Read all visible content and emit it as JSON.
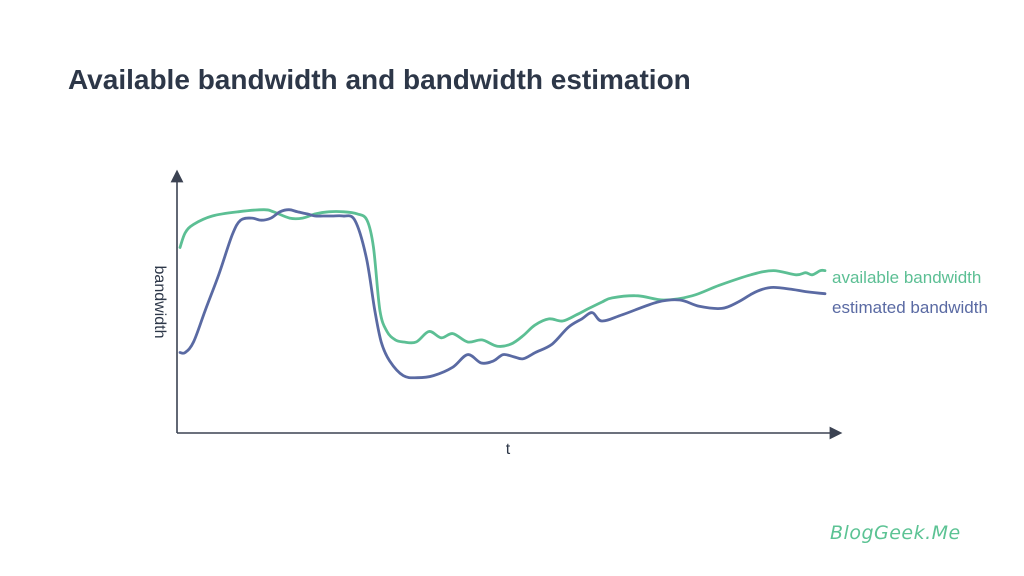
{
  "title": "Available bandwidth and bandwidth estimation",
  "logo": "BlogGeek.Me",
  "colors": {
    "available": "#5cbf94",
    "estimated": "#5a6aa3",
    "axis": "#3b4252",
    "title": "#2d3748"
  },
  "chart_data": {
    "type": "line",
    "xlabel": "t",
    "ylabel": "bandwidth",
    "xlim": [
      0,
      100
    ],
    "ylim": [
      0,
      100
    ],
    "grid": false,
    "legend": "right, inline at line ends",
    "series": [
      {
        "name": "available bandwidth",
        "x": [
          0,
          0.8,
          2.1,
          5,
          9,
          13,
          14.5,
          17,
          19,
          21,
          23,
          25.4,
          27.5,
          29,
          30,
          31,
          32.1,
          33.4,
          34.7,
          36.6,
          38.6,
          40.5,
          42.3,
          44.6,
          46.8,
          49.2,
          51.3,
          53.2,
          55,
          57.2,
          59.3,
          61.5,
          63.4,
          65.4,
          67,
          71,
          75,
          79.4,
          83.6,
          88.5,
          92,
          95.5,
          97,
          98,
          99.3,
          100
        ],
        "y": [
          75,
          82,
          86,
          90,
          92,
          93,
          92,
          89,
          89,
          91,
          92,
          92,
          91,
          88,
          75,
          45,
          35,
          31,
          30,
          30,
          35,
          32,
          34,
          30,
          31,
          28,
          29,
          33,
          38,
          41,
          40,
          43,
          46,
          49,
          51,
          52,
          50,
          52,
          57,
          62,
          64,
          62,
          63,
          62,
          64,
          64
        ]
      },
      {
        "name": "estimated bandwidth",
        "x": [
          0,
          0.8,
          2.1,
          3.9,
          6,
          8.1,
          9.4,
          11.1,
          12.6,
          14.1,
          15.5,
          16.9,
          18.2,
          19.7,
          21,
          22.2,
          23.6,
          25.3,
          27.1,
          28.9,
          30.2,
          31.2,
          32.5,
          34.6,
          36.8,
          39.3,
          42.3,
          44.6,
          46.7,
          48.6,
          50.1,
          51.7,
          53.2,
          55.1,
          57.7,
          60.2,
          62.3,
          63.9,
          65.4,
          68.6,
          74,
          77.5,
          80.5,
          84,
          86.5,
          88.7,
          90.2,
          92,
          95,
          97,
          100
        ],
        "y": [
          25,
          25,
          30,
          45,
          62,
          81,
          88,
          89,
          88,
          89,
          92,
          93,
          92,
          91,
          90,
          90,
          90,
          90,
          88,
          70,
          45,
          30,
          21,
          14,
          13,
          14,
          18,
          24,
          20,
          21,
          24,
          23,
          22,
          25,
          29,
          37,
          41,
          44,
          40,
          43,
          49,
          50,
          47,
          46,
          49,
          53,
          55,
          56,
          55,
          54,
          53
        ]
      }
    ]
  }
}
